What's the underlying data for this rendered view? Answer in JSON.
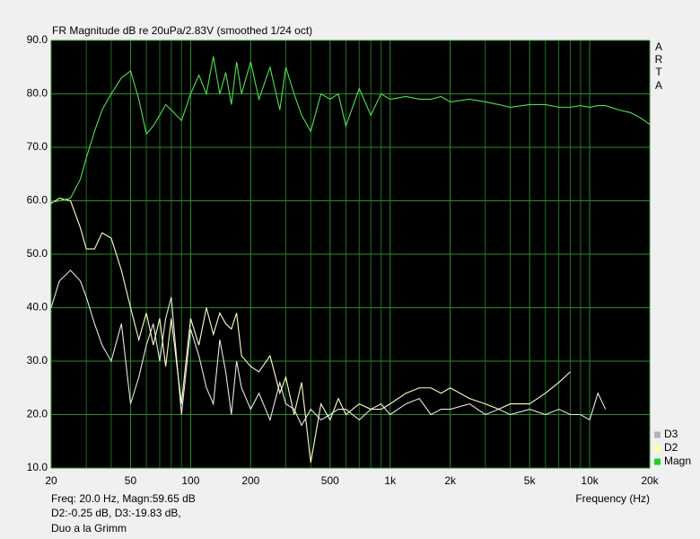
{
  "chart_data": {
    "type": "line",
    "title": "FR Magnitude dB re 20uPa/2.83V (smoothed 1/24 oct)",
    "brand": [
      "A",
      "R",
      "T",
      "A"
    ],
    "x_label": "Frequency (Hz)",
    "info": [
      "Freq: 20.0 Hz, Magn:59.65 dB",
      "D2:-0.25 dB, D3:-19.83 dB,",
      "Duo a la Grimm"
    ],
    "x_scale": "log",
    "grid": true,
    "legend": "bottom-right",
    "xlim": [
      20,
      20000
    ],
    "ylim": [
      10,
      90
    ],
    "xticks": [
      20,
      50,
      100,
      200,
      500,
      {
        "value": 1000,
        "label": "1k"
      },
      {
        "value": 2000,
        "label": "2k"
      },
      {
        "value": 5000,
        "label": "5k"
      },
      {
        "value": 10000,
        "label": "10k"
      },
      {
        "value": 20000,
        "label": "20k"
      }
    ],
    "xminor": [
      30,
      40,
      60,
      70,
      80,
      90,
      300,
      400,
      600,
      700,
      800,
      900,
      3000,
      4000,
      6000,
      7000,
      8000,
      9000
    ],
    "yticks": [
      {
        "value": 10,
        "label": "10.0"
      },
      {
        "value": 20,
        "label": "20.0"
      },
      {
        "value": 30,
        "label": "30.0"
      },
      {
        "value": 40,
        "label": "40.0"
      },
      {
        "value": 50,
        "label": "50.0"
      },
      {
        "value": 60,
        "label": "60.0"
      },
      {
        "value": 70,
        "label": "70.0"
      },
      {
        "value": 80,
        "label": "80.0"
      },
      {
        "value": 90,
        "label": "90.0"
      }
    ],
    "x": [
      20,
      22,
      25,
      28,
      30,
      33,
      36,
      40,
      45,
      50,
      55,
      60,
      65,
      70,
      75,
      80,
      90,
      100,
      110,
      120,
      130,
      140,
      150,
      160,
      170,
      180,
      200,
      220,
      250,
      280,
      300,
      330,
      360,
      400,
      450,
      500,
      550,
      600,
      700,
      800,
      900,
      1000,
      1200,
      1400,
      1600,
      1800,
      2000,
      2500,
      3000,
      3500,
      4000,
      5000,
      6000,
      7000,
      8000,
      9000,
      10000,
      11000,
      12000,
      14000,
      16000,
      18000,
      20000
    ],
    "series": [
      {
        "name": "D3",
        "color": "#e6e6e6",
        "swatch": "#b4b4b4",
        "values": [
          40,
          45,
          47,
          45,
          42,
          37,
          33,
          30,
          37,
          22,
          27,
          33,
          37,
          30,
          38,
          42,
          20,
          36,
          31,
          25,
          22,
          34,
          28,
          20,
          30,
          25,
          21,
          24,
          19,
          26,
          22,
          21,
          18,
          21,
          19,
          20,
          21,
          21,
          19,
          21,
          22,
          20,
          22,
          23,
          20,
          21,
          21,
          22,
          20,
          21,
          20,
          21,
          20,
          21,
          20,
          20,
          19,
          24,
          21,
          null,
          null,
          null,
          null
        ]
      },
      {
        "name": "D2",
        "color": "#ffffc8",
        "swatch": "#ffffa0",
        "values": [
          59.5,
          60.5,
          60,
          55,
          51,
          51,
          54,
          53,
          47,
          40,
          34,
          39,
          33,
          38,
          29,
          38,
          22,
          38,
          33,
          40,
          35,
          39,
          37,
          36,
          39,
          31,
          29,
          28,
          31,
          24,
          27,
          20,
          26,
          11,
          22,
          19,
          23,
          20,
          22,
          21,
          21,
          22,
          24,
          25,
          25,
          24,
          25,
          23,
          22,
          21,
          22,
          22,
          24,
          26,
          28,
          null,
          null,
          null,
          null,
          null,
          null,
          null,
          null
        ]
      },
      {
        "name": "Magn",
        "color": "#50e050",
        "swatch": "#20d020",
        "values": [
          59.7,
          60,
          60.5,
          64,
          68,
          73,
          77,
          80,
          83,
          84.3,
          79,
          72.5,
          74,
          76,
          78,
          77,
          75,
          80,
          83.5,
          80,
          87,
          80,
          84,
          78,
          86,
          80,
          86,
          79,
          85,
          77,
          85,
          80,
          76,
          73,
          80,
          79,
          80,
          74,
          81,
          76,
          80,
          79,
          79.5,
          79,
          79,
          79.5,
          78.5,
          79,
          78.5,
          78,
          77.5,
          78,
          78,
          77.5,
          77.5,
          77.8,
          77.5,
          77.8,
          77.8,
          77,
          76.5,
          75.5,
          74.3
        ]
      }
    ]
  }
}
